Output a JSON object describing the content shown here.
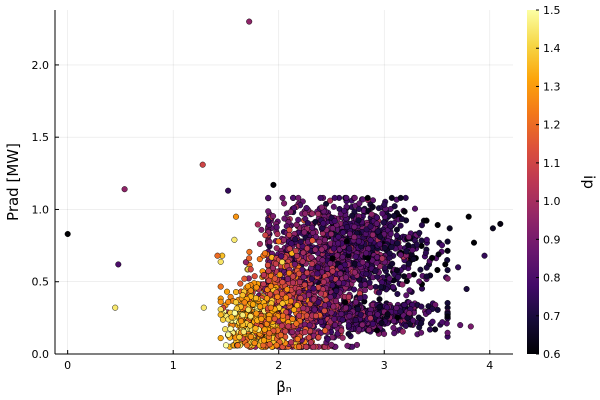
{
  "chart_data": {
    "type": "scatter",
    "xlabel": "βₙ",
    "ylabel": "Prad [MW]",
    "colorbar_label": "ip",
    "xlim": [
      -0.12,
      4.22
    ],
    "ylim": [
      0.0,
      2.38
    ],
    "x_ticks": [
      0,
      1,
      2,
      3,
      4
    ],
    "x_tick_labels": [
      "0",
      "1",
      "2",
      "3",
      "4"
    ],
    "y_ticks": [
      0.0,
      0.5,
      1.0,
      1.5,
      2.0
    ],
    "y_tick_labels": [
      "0.0",
      "0.5",
      "1.0",
      "1.5",
      "2.0"
    ],
    "color_range": [
      0.6,
      1.5
    ],
    "color_ticks": [
      0.6,
      0.7,
      0.8,
      0.9,
      1.0,
      1.1,
      1.2,
      1.3,
      1.4,
      1.5
    ],
    "color_tick_labels": [
      "0.6",
      "0.7",
      "0.8",
      "0.9",
      "1.0",
      "1.1",
      "1.2",
      "1.3",
      "1.4",
      "1.5"
    ],
    "colormap": "inferno",
    "grid": true,
    "legend": "none",
    "outliers": [
      {
        "x": 0.0,
        "y": 0.83,
        "c": 0.6
      },
      {
        "x": 0.48,
        "y": 0.62,
        "c": 0.8
      },
      {
        "x": 0.54,
        "y": 1.14,
        "c": 0.95
      },
      {
        "x": 0.45,
        "y": 0.32,
        "c": 1.45
      },
      {
        "x": 1.28,
        "y": 1.31,
        "c": 1.1
      },
      {
        "x": 1.29,
        "y": 0.32,
        "c": 1.45
      },
      {
        "x": 1.52,
        "y": 1.13,
        "c": 0.75
      },
      {
        "x": 1.72,
        "y": 2.3,
        "c": 0.95
      },
      {
        "x": 1.95,
        "y": 1.17,
        "c": 0.6
      },
      {
        "x": 1.58,
        "y": 0.79,
        "c": 1.45
      },
      {
        "x": 1.42,
        "y": 0.68,
        "c": 1.2
      },
      {
        "x": 3.8,
        "y": 0.95,
        "c": 0.6
      },
      {
        "x": 3.62,
        "y": 0.87,
        "c": 0.65
      },
      {
        "x": 3.85,
        "y": 0.77,
        "c": 0.6
      },
      {
        "x": 4.03,
        "y": 0.87,
        "c": 0.65
      },
      {
        "x": 4.1,
        "y": 0.9,
        "c": 0.62
      },
      {
        "x": 3.95,
        "y": 0.68,
        "c": 0.75
      },
      {
        "x": 3.72,
        "y": 0.2,
        "c": 0.85
      },
      {
        "x": 3.82,
        "y": 0.19,
        "c": 0.9
      },
      {
        "x": 3.55,
        "y": 0.22,
        "c": 0.8
      },
      {
        "x": 3.7,
        "y": 0.6,
        "c": 0.75
      },
      {
        "x": 3.78,
        "y": 0.45,
        "c": 0.7
      }
    ],
    "clusters": [
      {
        "count": 1300,
        "x_mean": 2.6,
        "x_sd": 0.38,
        "x_min": 1.9,
        "x_max": 3.6,
        "y_mean": 0.72,
        "y_sd": 0.17,
        "y_min": 0.35,
        "y_max": 1.08,
        "c_base": 0.82,
        "c_slope": -0.12,
        "c_sd": 0.09
      },
      {
        "count": 500,
        "x_mean": 2.8,
        "x_sd": 0.35,
        "x_min": 2.0,
        "x_max": 3.6,
        "y_mean": 0.26,
        "y_sd": 0.05,
        "y_min": 0.12,
        "y_max": 0.34,
        "c_base": 0.82,
        "c_slope": -0.1,
        "c_sd": 0.08
      },
      {
        "count": 800,
        "x_mean": 2.15,
        "x_sd": 0.28,
        "x_min": 1.45,
        "x_max": 3.0,
        "y_mean": 0.35,
        "y_sd": 0.18,
        "y_min": 0.05,
        "y_max": 0.95,
        "c_base": 1.05,
        "c_slope": -0.35,
        "c_sd": 0.12
      },
      {
        "count": 450,
        "x_mean": 1.8,
        "x_sd": 0.14,
        "x_min": 1.45,
        "x_max": 2.2,
        "y_mean": 0.22,
        "y_sd": 0.1,
        "y_min": 0.06,
        "y_max": 0.55,
        "c_base": 1.3,
        "c_slope": -0.3,
        "c_sd": 0.1
      }
    ]
  }
}
